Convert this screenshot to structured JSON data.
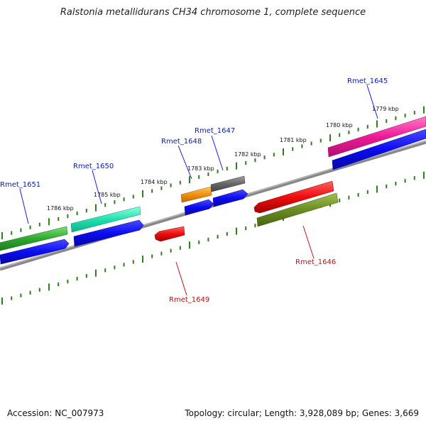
{
  "title": "Ralstonia metallidurans CH34 chromosome 1, complete sequence",
  "footer": {
    "accession": "Accession: NC_007973",
    "summary": "Topology: circular; Length: 3,928,089 bp; Genes: 3,669"
  },
  "scale_labels": [
    "1786 kbp",
    "1785 kbp",
    "1784 kbp",
    "1783 kbp",
    "1782 kbp",
    "1781 kbp",
    "1780 kbp",
    "1779 kbp"
  ],
  "gene_labels": {
    "top": [
      "Rmet_1651",
      "Rmet_1650",
      "Rmet_1648",
      "Rmet_1647",
      "Rmet_1645"
    ],
    "bottom": [
      "Rmet_1649",
      "Rmet_1646"
    ]
  },
  "colors": {
    "tick": "#2e7d1e",
    "backbone": "#808080",
    "cds": "#1010e0",
    "label_top": "#0a1ab0",
    "label_bottom": "#c01010"
  }
}
